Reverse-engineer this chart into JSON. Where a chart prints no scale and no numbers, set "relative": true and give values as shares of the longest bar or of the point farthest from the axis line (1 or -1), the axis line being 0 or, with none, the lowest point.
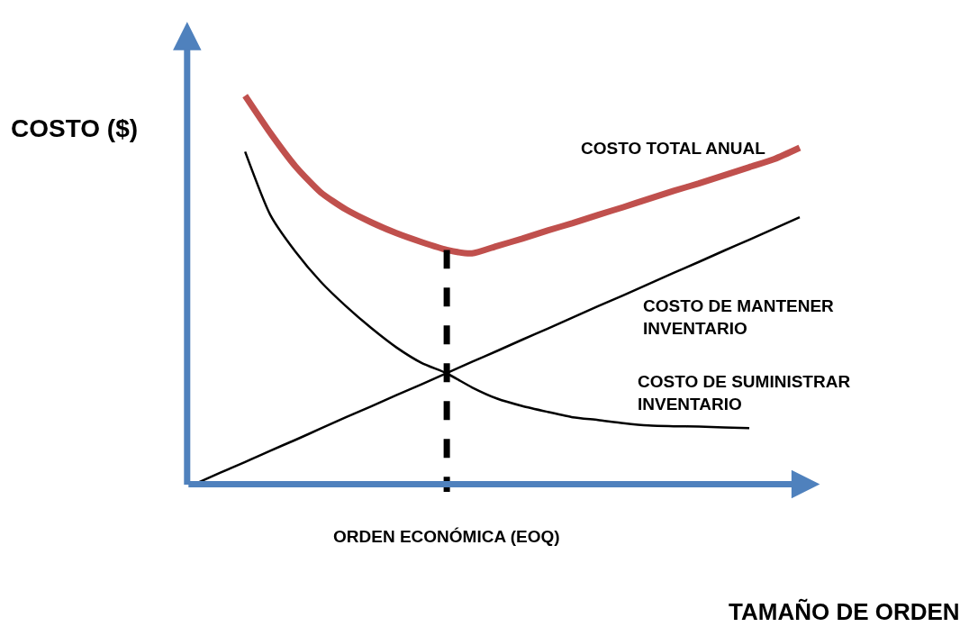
{
  "chart_data": {
    "type": "line",
    "relative": true,
    "ylabel": "COSTO ($)",
    "categories": [
      null,
      null,
      null,
      null,
      null,
      null,
      null,
      null,
      null,
      null,
      null,
      null,
      null,
      null,
      null,
      null,
      null,
      null,
      null,
      null,
      null,
      null,
      null,
      null,
      null
    ],
    "series": [
      {
        "name": "COSTO TOTAL ANUAL",
        "color": "#c0504d",
        "values": [
          null,
          null,
          1.0,
          0.904,
          0.818,
          0.751,
          0.707,
          0.674,
          0.646,
          0.623,
          0.603,
          0.594,
          0.613,
          0.632,
          0.653,
          0.672,
          0.693,
          0.713,
          0.734,
          0.755,
          0.774,
          0.795,
          0.816,
          0.837,
          0.866
        ]
      },
      {
        "name": "COSTO DE MANTENER\nINVENTARIO",
        "color": "#000000",
        "values": [
          0,
          0.029,
          0.057,
          0.086,
          0.114,
          0.143,
          0.172,
          0.2,
          0.229,
          0.257,
          0.286,
          0.315,
          0.343,
          0.372,
          0.4,
          0.429,
          0.458,
          0.486,
          0.515,
          0.544,
          0.572,
          0.601,
          0.629,
          0.658,
          0.687
        ]
      },
      {
        "name": "COSTO DE SUMINISTRAR\nINVENTARIO",
        "color": "#000000",
        "values": [
          null,
          null,
          0.856,
          0.693,
          0.598,
          0.521,
          0.458,
          0.402,
          0.352,
          0.312,
          0.285,
          0.249,
          0.22,
          0.201,
          0.186,
          0.172,
          0.165,
          0.157,
          0.151,
          0.149,
          0.148,
          0.146,
          0.144,
          null,
          null
        ]
      }
    ],
    "annotations": [
      "ORDEN ECONÓMICA (EOQ)",
      "TAMAÑO DE ORDEN"
    ],
    "legend": false,
    "marker": "none",
    "line_style": "solid"
  }
}
